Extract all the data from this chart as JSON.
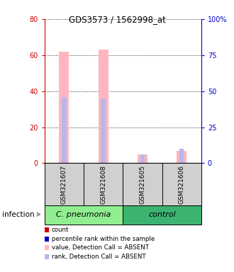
{
  "title": "GDS3573 / 1562998_at",
  "samples": [
    "GSM321607",
    "GSM321608",
    "GSM321605",
    "GSM321606"
  ],
  "groups": [
    "C. pneumonia",
    "C. pneumonia",
    "control",
    "control"
  ],
  "group_labels": [
    "C. pneumonia",
    "control"
  ],
  "group_colors": [
    "#90EE90",
    "#3CB371"
  ],
  "bar_color_absent": "#FFB6C1",
  "rank_color_absent": "#B8B8E8",
  "ylim_left": [
    0,
    80
  ],
  "ylim_right": [
    0,
    100
  ],
  "yticks_left": [
    0,
    20,
    40,
    60,
    80
  ],
  "yticks_right": [
    0,
    25,
    50,
    75,
    100
  ],
  "left_tick_color": "#CC0000",
  "right_tick_color": "#0000CC",
  "values": [
    62.0,
    63.0,
    5.0,
    7.0
  ],
  "percentile_ranks": [
    46.0,
    45.0,
    6.0,
    10.0
  ],
  "detection_call": [
    "ABSENT",
    "ABSENT",
    "ABSENT",
    "ABSENT"
  ],
  "legend_items": [
    {
      "color": "#CC0000",
      "label": "count"
    },
    {
      "color": "#0000CC",
      "label": "percentile rank within the sample"
    },
    {
      "color": "#FFB6C1",
      "label": "value, Detection Call = ABSENT"
    },
    {
      "color": "#B8B8E8",
      "label": "rank, Detection Call = ABSENT"
    }
  ],
  "infection_label": "infection",
  "bar_width": 0.25,
  "rank_bar_width": 0.12
}
